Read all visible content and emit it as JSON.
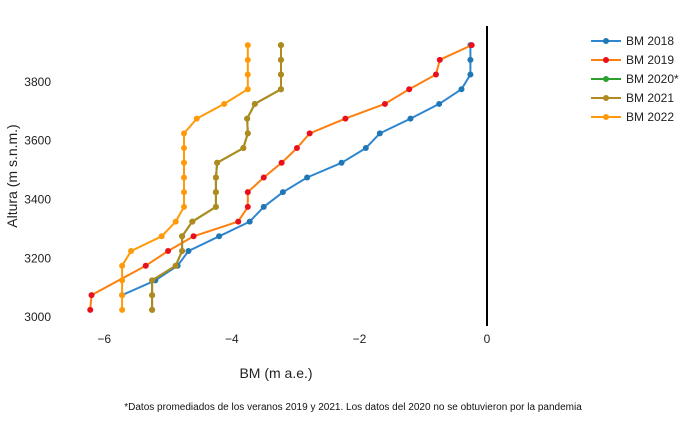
{
  "chart_data": {
    "type": "line",
    "xlabel": "BM (m a.e.)",
    "ylabel": "Altura (m s.n.m.)",
    "xlim": [
      -6.6,
      0
    ],
    "ylim": [
      2970,
      3990
    ],
    "x_ticks": [
      -6,
      -4,
      -2,
      0
    ],
    "x_tick_labels": [
      "−6",
      "−4",
      "−2",
      "0"
    ],
    "y_ticks": [
      3000,
      3200,
      3400,
      3600,
      3800
    ],
    "y_tick_labels": [
      "3000",
      "3200",
      "3400",
      "3600",
      "3800"
    ],
    "grid": false,
    "legend_position": "right",
    "footnote": "*Datos promediados de los veranos 2019 y 2021. Los datos del 2020 no se obtuvieron por la pandemia",
    "series": [
      {
        "name": "BM 2018",
        "color": "#1f77b4",
        "line_color": "#2e86d0",
        "points": [
          {
            "x": -5.72,
            "y": 3075
          },
          {
            "x": -5.2,
            "y": 3125
          },
          {
            "x": -4.85,
            "y": 3175
          },
          {
            "x": -4.68,
            "y": 3225
          },
          {
            "x": -4.2,
            "y": 3275
          },
          {
            "x": -3.72,
            "y": 3325
          },
          {
            "x": -3.5,
            "y": 3375
          },
          {
            "x": -3.2,
            "y": 3425
          },
          {
            "x": -2.82,
            "y": 3475
          },
          {
            "x": -2.28,
            "y": 3525
          },
          {
            "x": -1.9,
            "y": 3575
          },
          {
            "x": -1.68,
            "y": 3625
          },
          {
            "x": -1.2,
            "y": 3675
          },
          {
            "x": -0.75,
            "y": 3725
          },
          {
            "x": -0.4,
            "y": 3775
          },
          {
            "x": -0.26,
            "y": 3825
          },
          {
            "x": -0.26,
            "y": 3875
          },
          {
            "x": -0.26,
            "y": 3925
          }
        ]
      },
      {
        "name": "BM 2019",
        "color": "#ff7f0e",
        "marker_color": "#e8101c",
        "points": [
          {
            "x": -6.22,
            "y": 3025
          },
          {
            "x": -6.2,
            "y": 3075
          },
          {
            "x": -5.35,
            "y": 3175
          },
          {
            "x": -5.0,
            "y": 3225
          },
          {
            "x": -4.6,
            "y": 3275
          },
          {
            "x": -3.9,
            "y": 3325
          },
          {
            "x": -3.75,
            "y": 3375
          },
          {
            "x": -3.75,
            "y": 3425
          },
          {
            "x": -3.5,
            "y": 3475
          },
          {
            "x": -3.22,
            "y": 3525
          },
          {
            "x": -2.98,
            "y": 3575
          },
          {
            "x": -2.78,
            "y": 3625
          },
          {
            "x": -2.22,
            "y": 3675
          },
          {
            "x": -1.6,
            "y": 3725
          },
          {
            "x": -1.22,
            "y": 3775
          },
          {
            "x": -0.8,
            "y": 3825
          },
          {
            "x": -0.74,
            "y": 3875
          },
          {
            "x": -0.24,
            "y": 3925
          }
        ]
      },
      {
        "name": "BM 2020*",
        "color": "#2ca02c",
        "points": [
          {
            "x": -5.25,
            "y": 3025
          },
          {
            "x": -5.25,
            "y": 3075
          },
          {
            "x": -5.25,
            "y": 3125
          },
          {
            "x": -4.88,
            "y": 3175
          },
          {
            "x": -4.78,
            "y": 3225
          },
          {
            "x": -4.78,
            "y": 3275
          },
          {
            "x": -4.62,
            "y": 3325
          },
          {
            "x": -4.25,
            "y": 3375
          },
          {
            "x": -4.25,
            "y": 3425
          },
          {
            "x": -4.25,
            "y": 3475
          },
          {
            "x": -4.23,
            "y": 3525
          },
          {
            "x": -3.82,
            "y": 3575
          },
          {
            "x": -3.75,
            "y": 3625
          },
          {
            "x": -3.76,
            "y": 3675
          },
          {
            "x": -3.64,
            "y": 3725
          },
          {
            "x": -3.23,
            "y": 3775
          },
          {
            "x": -3.23,
            "y": 3825
          },
          {
            "x": -3.23,
            "y": 3875
          },
          {
            "x": -3.23,
            "y": 3925
          }
        ]
      },
      {
        "name": "BM 2021",
        "color": "#b08a1e",
        "points": [
          {
            "x": -5.25,
            "y": 3025
          },
          {
            "x": -5.25,
            "y": 3075
          },
          {
            "x": -5.25,
            "y": 3125
          },
          {
            "x": -4.88,
            "y": 3175
          },
          {
            "x": -4.78,
            "y": 3225
          },
          {
            "x": -4.78,
            "y": 3275
          },
          {
            "x": -4.62,
            "y": 3325
          },
          {
            "x": -4.25,
            "y": 3375
          },
          {
            "x": -4.25,
            "y": 3425
          },
          {
            "x": -4.25,
            "y": 3475
          },
          {
            "x": -4.23,
            "y": 3525
          },
          {
            "x": -3.82,
            "y": 3575
          },
          {
            "x": -3.75,
            "y": 3625
          },
          {
            "x": -3.76,
            "y": 3675
          },
          {
            "x": -3.64,
            "y": 3725
          },
          {
            "x": -3.23,
            "y": 3775
          },
          {
            "x": -3.23,
            "y": 3825
          },
          {
            "x": -3.23,
            "y": 3875
          },
          {
            "x": -3.23,
            "y": 3925
          }
        ]
      },
      {
        "name": "BM 2022",
        "color": "#ff9a0a",
        "points": [
          {
            "x": -5.72,
            "y": 3025
          },
          {
            "x": -5.72,
            "y": 3075
          },
          {
            "x": -5.72,
            "y": 3125
          },
          {
            "x": -5.72,
            "y": 3175
          },
          {
            "x": -5.58,
            "y": 3225
          },
          {
            "x": -5.1,
            "y": 3275
          },
          {
            "x": -4.88,
            "y": 3325
          },
          {
            "x": -4.75,
            "y": 3375
          },
          {
            "x": -4.75,
            "y": 3425
          },
          {
            "x": -4.75,
            "y": 3475
          },
          {
            "x": -4.75,
            "y": 3525
          },
          {
            "x": -4.75,
            "y": 3575
          },
          {
            "x": -4.75,
            "y": 3625
          },
          {
            "x": -4.55,
            "y": 3675
          },
          {
            "x": -4.12,
            "y": 3725
          },
          {
            "x": -3.75,
            "y": 3775
          },
          {
            "x": -3.75,
            "y": 3825
          },
          {
            "x": -3.75,
            "y": 3875
          },
          {
            "x": -3.75,
            "y": 3925
          }
        ]
      }
    ]
  }
}
